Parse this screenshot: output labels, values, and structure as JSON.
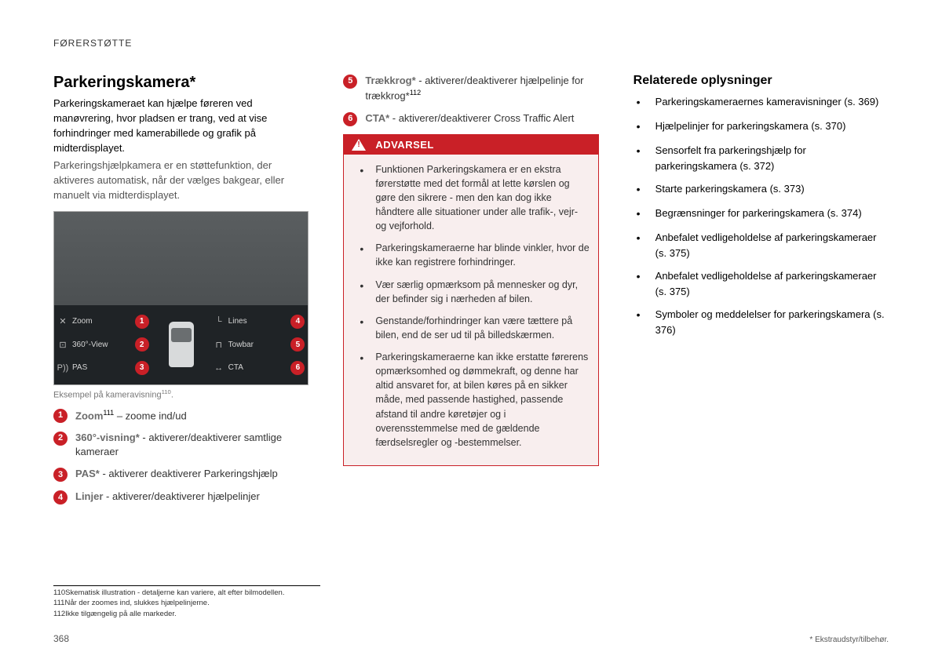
{
  "header": "FØRERSTØTTE",
  "pageNumber": "368",
  "footerNote": "* Ekstraudstyr/tilbehør.",
  "col1": {
    "heading": "Parkeringskamera*",
    "intro": "Parkeringskameraet kan hjælpe føreren ved manøvrering, hvor pladsen er trang, ved at vise forhindringer med kamerabillede og grafik på midterdisplayet.",
    "body": "Parkeringshjælpkamera er en støttefunktion, der aktiveres automatisk, når der vælges bakgear, eller manuelt via midterdisplayet.",
    "figure": {
      "left": [
        {
          "icon": "✕",
          "label": "Zoom",
          "num": "1"
        },
        {
          "icon": "⊡",
          "label": "360°-View",
          "num": "2"
        },
        {
          "icon": "P))",
          "label": "PAS",
          "num": "3"
        }
      ],
      "right": [
        {
          "icon": "└",
          "label": "Lines",
          "num": "4"
        },
        {
          "icon": "⊓",
          "label": "Towbar",
          "num": "5"
        },
        {
          "icon": "↔",
          "label": "CTA",
          "num": "6"
        }
      ]
    },
    "caption_pre": "Eksempel på kameravisning",
    "caption_sup": "110",
    "caption_post": ".",
    "items": [
      {
        "n": "1",
        "term": "Zoom",
        "sup": "111",
        "desc": " – zoome ind/ud"
      },
      {
        "n": "2",
        "term": "360°-visning*",
        "desc": " - aktiverer/deaktiverer samtlige kameraer"
      },
      {
        "n": "3",
        "term": "PAS*",
        "desc": " - aktiverer deaktiverer Parkeringshjælp"
      },
      {
        "n": "4",
        "term": "Linjer",
        "desc": " - aktiverer/deaktiverer hjælpelinjer"
      }
    ]
  },
  "col2": {
    "topItems": [
      {
        "n": "5",
        "term": "Trækkrog*",
        "desc_pre": " - aktiverer/deaktiverer hjælpelinje for trækkrog*",
        "sup": "112"
      },
      {
        "n": "6",
        "term": "CTA*",
        "desc_pre": " - aktiverer/deaktiverer Cross Traffic Alert"
      }
    ],
    "warningTitle": "ADVARSEL",
    "warningItems": [
      "Funktionen Parkeringskamera er en ekstra førerstøtte med det formål at lette kørslen og gøre den sikrere - men den kan dog ikke håndtere alle situationer under alle trafik-, vejr- og vejforhold.",
      "Parkeringskameraerne har blinde vinkler, hvor de ikke kan registrere forhindringer.",
      "Vær særlig opmærksom på mennesker og dyr, der befinder sig i nærheden af bilen.",
      "Genstande/forhindringer kan være tættere på bilen, end de ser ud til på billedskærmen.",
      "Parkeringskameraerne kan ikke erstatte førerens opmærksomhed og dømmekraft, og denne har altid ansvaret for, at bilen køres på en sikker måde, med passende hastighed, passende afstand til andre køretøjer og i overensstemmelse med de gældende færdselsregler og -bestemmelser."
    ]
  },
  "col3": {
    "heading": "Relaterede oplysninger",
    "items": [
      "Parkeringskameraernes kameravisninger (s. 369)",
      "Hjælpelinjer for parkeringskamera (s. 370)",
      "Sensorfelt fra parkeringshjælp for parkeringskamera (s. 372)",
      "Starte parkeringskamera (s. 373)",
      "Begrænsninger for parkeringskamera (s. 374)",
      "Anbefalet vedligeholdelse af parkeringskameraer (s. 375)",
      "Anbefalet vedligeholdelse af parkeringskameraer (s. 375)",
      "Symboler og meddelelser for parkeringskamera (s. 376)"
    ]
  },
  "footnotes": [
    {
      "n": "110",
      "t": "Skematisk illustration - detaljerne kan variere, alt efter bilmodellen."
    },
    {
      "n": "111",
      "t": "Når der zoomes ind, slukkes hjælpelinjerne."
    },
    {
      "n": "112",
      "t": "Ikke tilgængelig på alle markeder."
    }
  ],
  "colors": {
    "accent": "#c92027",
    "warningBg": "#f8eeee",
    "text": "#000000",
    "muted": "#555555"
  }
}
